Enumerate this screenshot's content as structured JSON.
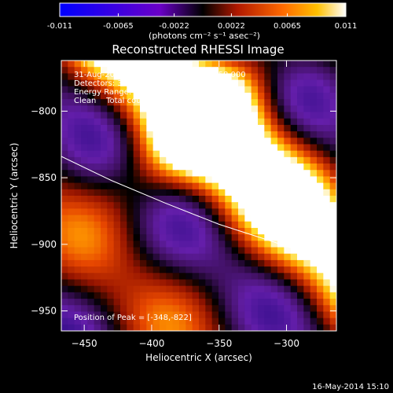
{
  "chart_data": {
    "type": "heatmap",
    "title": "Reconstructed RHESSI Image",
    "xlabel": "Heliocentric X (arcsec)",
    "ylabel": "Heliocentric Y (arcsec)",
    "xlim": [
      -467,
      -263
    ],
    "ylim": [
      -965,
      -762
    ],
    "x_ticks": [
      -450,
      -400,
      -350,
      -300
    ],
    "y_ticks": [
      -800,
      -850,
      -900,
      -950
    ],
    "colorbar": {
      "ticks": [
        "-0.011",
        "-0.0065",
        "-0.0022",
        "0.0022",
        "0.0065",
        "0.011"
      ],
      "tick_values": [
        -0.011,
        -0.0065,
        -0.0022,
        0.0022,
        0.0065,
        0.011
      ],
      "range": [
        -0.011,
        0.011
      ],
      "unit_label": "(photons cm⁻² s⁻¹ asec⁻²)"
    },
    "info_lines": [
      "31-Aug-2012 16:08:32.000 to 16:11:58.000",
      "Detectors: 3F 5F 6F 7F 8F 9F, Att 0",
      "Energy Range: 12.0 - 25.0 keV",
      "Clean    Total counts: 2.42E+04"
    ],
    "peak_text": "Position of Peak = [-348,-822]",
    "peak": [
      -348,
      -822
    ],
    "limb_curve": [
      [
        -467,
        -834
      ],
      [
        -430,
        -852
      ],
      [
        -390,
        -869
      ],
      [
        -350,
        -885
      ],
      [
        -310,
        -898
      ],
      [
        -290,
        -905
      ],
      [
        -263,
        -913
      ]
    ]
  },
  "timestamp": "16-May-2014 15:10"
}
